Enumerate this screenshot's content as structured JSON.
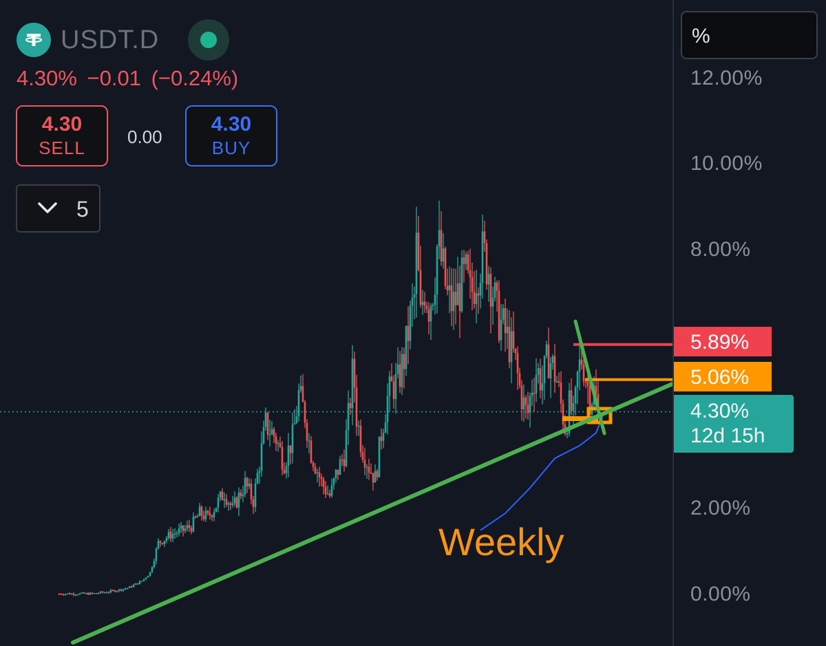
{
  "header": {
    "symbol": "USDT.D",
    "logo_icon": "tether-logo-icon",
    "status_icon": "market-status-dot-icon",
    "quote": "4.30%  −0.01 (−0.24%)"
  },
  "trade": {
    "sell_price": "4.30",
    "sell_label": "SELL",
    "spread": "0.00",
    "buy_price": "4.30",
    "buy_label": "BUY",
    "quantity": "5",
    "quantity_icon": "chevron-down-icon"
  },
  "price_axis": {
    "unit": "%",
    "ticks": [
      "12.00%",
      "10.00%",
      "8.00%",
      "2.00%",
      "0.00%"
    ]
  },
  "levels": {
    "red": "5.89%",
    "orange": "5.06%",
    "last_price": "4.30%",
    "countdown": "12d 15h"
  },
  "annotation": {
    "text": "Weekly"
  },
  "colors": {
    "background": "#131722",
    "up": "#26a69a",
    "down": "#ef5350",
    "trendline": "#4caf50",
    "orange": "#ff9800",
    "red_level": "#f0414e",
    "ma": "#2962ff"
  },
  "chart_data": {
    "type": "candlestick",
    "timeframe": "Weekly",
    "y_unit": "%",
    "ylim": [
      -1.0,
      13.0
    ],
    "y_ticks": [
      0,
      2,
      8,
      10,
      12
    ],
    "last_price": 4.3,
    "horizontal_levels": [
      5.89,
      5.06,
      4.3
    ],
    "close_path": [
      [
        0,
        0.0
      ],
      [
        40,
        0.0
      ],
      [
        60,
        0.05
      ],
      [
        75,
        0.1
      ],
      [
        85,
        0.15
      ],
      [
        100,
        0.3
      ],
      [
        110,
        0.5
      ],
      [
        120,
        1.2
      ],
      [
        135,
        1.4
      ],
      [
        150,
        1.5
      ],
      [
        160,
        1.6
      ],
      [
        170,
        1.9
      ],
      [
        180,
        1.8
      ],
      [
        200,
        2.4
      ],
      [
        210,
        2.0
      ],
      [
        225,
        2.6
      ],
      [
        235,
        2.2
      ],
      [
        250,
        4.0
      ],
      [
        262,
        3.7
      ],
      [
        272,
        3.1
      ],
      [
        283,
        3.7
      ],
      [
        290,
        4.7
      ],
      [
        298,
        4.2
      ],
      [
        304,
        3.4
      ],
      [
        318,
        2.6
      ],
      [
        328,
        2.3
      ],
      [
        335,
        2.8
      ],
      [
        345,
        3.3
      ],
      [
        352,
        4.5
      ],
      [
        356,
        5.4
      ],
      [
        360,
        4.2
      ],
      [
        366,
        3.5
      ],
      [
        375,
        3.0
      ],
      [
        383,
        2.7
      ],
      [
        390,
        3.8
      ],
      [
        397,
        4.6
      ],
      [
        403,
        4.9
      ],
      [
        410,
        5.0
      ],
      [
        418,
        5.6
      ],
      [
        425,
        6.5
      ],
      [
        430,
        7.0
      ],
      [
        433,
        8.4
      ],
      [
        437,
        6.4
      ],
      [
        442,
        7.3
      ],
      [
        448,
        6.8
      ],
      [
        454,
        7.4
      ],
      [
        458,
        8.3
      ],
      [
        465,
        7.6
      ],
      [
        470,
        7.0
      ],
      [
        477,
        6.8
      ],
      [
        485,
        7.2
      ],
      [
        492,
        7.5
      ],
      [
        498,
        7.0
      ],
      [
        505,
        7.6
      ],
      [
        512,
        8.0
      ],
      [
        519,
        7.8
      ],
      [
        524,
        7.3
      ],
      [
        530,
        6.6
      ],
      [
        537,
        6.3
      ],
      [
        545,
        5.9
      ],
      [
        552,
        5.5
      ],
      [
        557,
        4.9
      ],
      [
        562,
        4.5
      ],
      [
        567,
        4.2
      ],
      [
        572,
        4.9
      ],
      [
        578,
        5.3
      ],
      [
        585,
        5.0
      ],
      [
        592,
        5.6
      ],
      [
        597,
        5.4
      ],
      [
        603,
        5.0
      ],
      [
        608,
        4.4
      ],
      [
        613,
        3.9
      ],
      [
        618,
        4.5
      ],
      [
        623,
        4.1
      ],
      [
        628,
        5.2
      ],
      [
        633,
        5.6
      ],
      [
        638,
        5.1
      ],
      [
        643,
        4.6
      ],
      [
        648,
        4.8
      ],
      [
        653,
        4.3
      ]
    ],
    "moving_average": [
      [
        510,
        1.5
      ],
      [
        540,
        1.9
      ],
      [
        570,
        2.5
      ],
      [
        600,
        3.2
      ],
      [
        630,
        3.5
      ],
      [
        650,
        3.8
      ],
      [
        658,
        4.2
      ]
    ]
  }
}
